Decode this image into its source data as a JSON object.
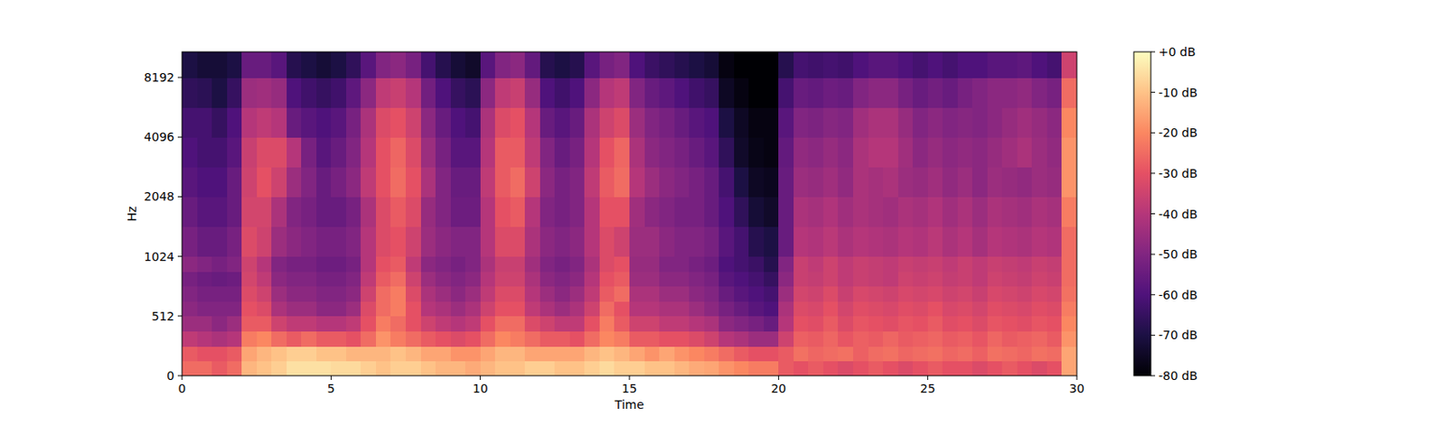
{
  "chart_data": {
    "type": "heatmap",
    "xlabel": "Time",
    "ylabel": "Hz",
    "log": "y",
    "xlim": [
      0,
      30
    ],
    "xticks": [
      0,
      5,
      10,
      15,
      20,
      25,
      30
    ],
    "ylim": [
      0,
      11025
    ],
    "yticks": [
      0,
      512,
      1024,
      2048,
      4096,
      8192
    ],
    "x_bins": [
      0,
      0.5,
      1,
      1.5,
      2,
      2.5,
      3,
      3.5,
      4,
      4.5,
      5,
      5.5,
      6,
      6.5,
      7,
      7.5,
      8,
      8.5,
      9,
      9.5,
      10,
      10.5,
      11,
      11.5,
      12,
      12.5,
      13,
      13.5,
      14,
      14.5,
      15,
      15.5,
      16,
      16.5,
      17,
      17.5,
      18,
      18.5,
      19,
      19.5,
      20,
      20.5,
      21,
      21.5,
      22,
      22.5,
      23,
      23.5,
      24,
      24.5,
      25,
      25.5,
      26,
      26.5,
      27,
      27.5,
      28,
      28.5,
      29,
      29.5,
      30
    ],
    "y_bins": [
      0,
      128,
      256,
      384,
      512,
      640,
      768,
      896,
      1024,
      1448,
      2048,
      2896,
      4096,
      5793,
      8192,
      11025
    ],
    "cells": [
      [
        -25,
        -25,
        -28,
        -25,
        -12,
        -10,
        -8,
        -5,
        -5,
        -5,
        -6,
        -6,
        -8,
        -10,
        -8,
        -8,
        -10,
        -12,
        -12,
        -14,
        -12,
        -10,
        -10,
        -8,
        -8,
        -10,
        -10,
        -8,
        -6,
        -8,
        -8,
        -10,
        -10,
        -12,
        -14,
        -15,
        -18,
        -20,
        -22,
        -22,
        -28,
        -30,
        -28,
        -30,
        -32,
        -30,
        -28,
        -30,
        -32,
        -30,
        -28,
        -30,
        -30,
        -32,
        -30,
        -28,
        -30,
        -32,
        -30,
        -15
      ],
      [
        -28,
        -30,
        -30,
        -28,
        -15,
        -12,
        -10,
        -8,
        -8,
        -10,
        -10,
        -12,
        -12,
        -12,
        -10,
        -12,
        -15,
        -15,
        -18,
        -18,
        -15,
        -12,
        -12,
        -15,
        -15,
        -15,
        -15,
        -12,
        -10,
        -12,
        -15,
        -18,
        -15,
        -18,
        -20,
        -22,
        -25,
        -28,
        -30,
        -30,
        -28,
        -24,
        -26,
        -25,
        -24,
        -27,
        -25,
        -24,
        -26,
        -25,
        -24,
        -26,
        -25,
        -27,
        -24,
        -25,
        -26,
        -24,
        -25,
        -15
      ],
      [
        -38,
        -40,
        -42,
        -40,
        -22,
        -20,
        -25,
        -28,
        -25,
        -28,
        -28,
        -30,
        -25,
        -18,
        -22,
        -25,
        -28,
        -30,
        -32,
        -30,
        -25,
        -20,
        -22,
        -25,
        -28,
        -28,
        -30,
        -25,
        -20,
        -22,
        -28,
        -28,
        -30,
        -30,
        -32,
        -35,
        -40,
        -42,
        -45,
        -45,
        -35,
        -27,
        -28,
        -26,
        -29,
        -27,
        -28,
        -26,
        -28,
        -27,
        -26,
        -28,
        -27,
        -29,
        -26,
        -28,
        -27,
        -26,
        -28,
        -18
      ],
      [
        -45,
        -45,
        -48,
        -45,
        -28,
        -28,
        -35,
        -38,
        -38,
        -40,
        -40,
        -38,
        -30,
        -22,
        -25,
        -30,
        -35,
        -38,
        -40,
        -38,
        -30,
        -25,
        -25,
        -32,
        -35,
        -38,
        -38,
        -30,
        -22,
        -28,
        -35,
        -35,
        -38,
        -38,
        -40,
        -42,
        -48,
        -50,
        -52,
        -55,
        -40,
        -30,
        -31,
        -28,
        -32,
        -29,
        -30,
        -31,
        -29,
        -30,
        -28,
        -31,
        -30,
        -32,
        -29,
        -30,
        -31,
        -29,
        -30,
        -20
      ],
      [
        -48,
        -50,
        -50,
        -50,
        -30,
        -32,
        -42,
        -45,
        -45,
        -48,
        -48,
        -45,
        -32,
        -25,
        -22,
        -30,
        -40,
        -42,
        -45,
        -42,
        -35,
        -30,
        -30,
        -38,
        -42,
        -45,
        -42,
        -35,
        -25,
        -30,
        -40,
        -40,
        -42,
        -42,
        -45,
        -48,
        -52,
        -55,
        -58,
        -60,
        -42,
        -32,
        -33,
        -30,
        -34,
        -31,
        -32,
        -33,
        -31,
        -32,
        -30,
        -33,
        -32,
        -34,
        -31,
        -32,
        -33,
        -31,
        -32,
        -22
      ],
      [
        -50,
        -52,
        -52,
        -52,
        -32,
        -35,
        -45,
        -48,
        -48,
        -50,
        -50,
        -48,
        -35,
        -25,
        -22,
        -32,
        -42,
        -45,
        -48,
        -45,
        -38,
        -32,
        -32,
        -40,
        -45,
        -48,
        -45,
        -38,
        -28,
        -25,
        -42,
        -42,
        -45,
        -45,
        -48,
        -50,
        -55,
        -58,
        -60,
        -62,
        -45,
        -34,
        -35,
        -32,
        -36,
        -33,
        -34,
        -35,
        -33,
        -34,
        -33,
        -35,
        -34,
        -36,
        -33,
        -34,
        -35,
        -33,
        -34,
        -24
      ],
      [
        -52,
        -54,
        -55,
        -54,
        -34,
        -38,
        -48,
        -50,
        -50,
        -52,
        -52,
        -50,
        -38,
        -28,
        -25,
        -35,
        -45,
        -48,
        -50,
        -48,
        -40,
        -35,
        -35,
        -42,
        -48,
        -50,
        -48,
        -40,
        -30,
        -28,
        -45,
        -45,
        -48,
        -48,
        -50,
        -52,
        -58,
        -60,
        -62,
        -65,
        -48,
        -36,
        -37,
        -35,
        -38,
        -36,
        -37,
        -38,
        -35,
        -36,
        -35,
        -37,
        -36,
        -38,
        -35,
        -36,
        -37,
        -35,
        -36,
        -25
      ],
      [
        -48,
        -50,
        -52,
        -50,
        -35,
        -40,
        -50,
        -52,
        -52,
        -54,
        -54,
        -52,
        -40,
        -30,
        -28,
        -38,
        -48,
        -50,
        -52,
        -50,
        -42,
        -36,
        -36,
        -44,
        -50,
        -52,
        -50,
        -42,
        -32,
        -30,
        -46,
        -46,
        -50,
        -50,
        -52,
        -54,
        -60,
        -62,
        -64,
        -68,
        -50,
        -36,
        -38,
        -35,
        -38,
        -36,
        -37,
        -38,
        -36,
        -37,
        -36,
        -38,
        -36,
        -38,
        -36,
        -37,
        -38,
        -36,
        -37,
        -25
      ],
      [
        -52,
        -55,
        -55,
        -52,
        -32,
        -35,
        -45,
        -48,
        -50,
        -52,
        -52,
        -50,
        -40,
        -32,
        -30,
        -35,
        -45,
        -48,
        -50,
        -50,
        -40,
        -32,
        -32,
        -42,
        -48,
        -50,
        -48,
        -40,
        -32,
        -35,
        -45,
        -45,
        -48,
        -50,
        -50,
        -52,
        -58,
        -62,
        -68,
        -70,
        -55,
        -40,
        -41,
        -39,
        -42,
        -40,
        -41,
        -42,
        -40,
        -41,
        -39,
        -42,
        -40,
        -43,
        -40,
        -41,
        -42,
        -40,
        -41,
        -25
      ],
      [
        -55,
        -58,
        -58,
        -55,
        -34,
        -34,
        -42,
        -50,
        -52,
        -55,
        -55,
        -52,
        -42,
        -32,
        -28,
        -32,
        -46,
        -50,
        -54,
        -54,
        -40,
        -30,
        -28,
        -40,
        -50,
        -52,
        -50,
        -40,
        -30,
        -30,
        -44,
        -48,
        -50,
        -52,
        -52,
        -55,
        -60,
        -66,
        -72,
        -74,
        -55,
        -42,
        -43,
        -41,
        -44,
        -42,
        -43,
        -44,
        -42,
        -43,
        -41,
        -44,
        -42,
        -45,
        -42,
        -43,
        -44,
        -42,
        -43,
        -22
      ],
      [
        -58,
        -60,
        -60,
        -55,
        -35,
        -30,
        -35,
        -45,
        -50,
        -55,
        -52,
        -48,
        -38,
        -30,
        -25,
        -30,
        -42,
        -50,
        -55,
        -55,
        -38,
        -28,
        -25,
        -35,
        -48,
        -52,
        -50,
        -38,
        -28,
        -25,
        -40,
        -45,
        -48,
        -50,
        -52,
        -55,
        -62,
        -70,
        -75,
        -76,
        -55,
        -45,
        -46,
        -44,
        -47,
        -42,
        -43,
        -42,
        -45,
        -46,
        -44,
        -47,
        -45,
        -48,
        -45,
        -46,
        -47,
        -45,
        -46,
        -18
      ],
      [
        -60,
        -62,
        -62,
        -58,
        -36,
        -32,
        -32,
        -40,
        -52,
        -58,
        -55,
        -50,
        -40,
        -30,
        -26,
        -32,
        -45,
        -52,
        -58,
        -58,
        -40,
        -28,
        -28,
        -38,
        -50,
        -55,
        -52,
        -40,
        -30,
        -26,
        -42,
        -48,
        -50,
        -52,
        -55,
        -58,
        -66,
        -74,
        -77,
        -78,
        -56,
        -47,
        -48,
        -46,
        -48,
        -42,
        -40,
        -40,
        -44,
        -48,
        -46,
        -48,
        -47,
        -48,
        -46,
        -44,
        -42,
        -45,
        -47,
        -18
      ],
      [
        -62,
        -62,
        -65,
        -60,
        -40,
        -38,
        -40,
        -55,
        -58,
        -60,
        -58,
        -52,
        -42,
        -32,
        -30,
        -35,
        -48,
        -55,
        -60,
        -62,
        -42,
        -32,
        -30,
        -40,
        -55,
        -58,
        -55,
        -42,
        -35,
        -32,
        -45,
        -50,
        -52,
        -55,
        -58,
        -60,
        -70,
        -75,
        -78,
        -78,
        -58,
        -50,
        -51,
        -49,
        -50,
        -44,
        -42,
        -42,
        -46,
        -50,
        -48,
        -50,
        -49,
        -50,
        -48,
        -46,
        -44,
        -46,
        -48,
        -20
      ],
      [
        -66,
        -67,
        -70,
        -65,
        -45,
        -44,
        -46,
        -60,
        -63,
        -65,
        -63,
        -57,
        -48,
        -38,
        -36,
        -40,
        -53,
        -60,
        -65,
        -67,
        -48,
        -38,
        -36,
        -46,
        -60,
        -63,
        -60,
        -48,
        -40,
        -38,
        -50,
        -55,
        -57,
        -60,
        -63,
        -65,
        -75,
        -78,
        -80,
        -80,
        -62,
        -55,
        -56,
        -54,
        -55,
        -50,
        -48,
        -48,
        -52,
        -55,
        -53,
        -55,
        -52,
        -50,
        -48,
        -48,
        -47,
        -50,
        -52,
        -25
      ],
      [
        -70,
        -72,
        -72,
        -70,
        -55,
        -55,
        -58,
        -68,
        -70,
        -72,
        -70,
        -66,
        -58,
        -50,
        -48,
        -52,
        -62,
        -68,
        -72,
        -74,
        -58,
        -50,
        -48,
        -56,
        -68,
        -70,
        -68,
        -58,
        -52,
        -50,
        -60,
        -64,
        -66,
        -68,
        -70,
        -72,
        -78,
        -80,
        -80,
        -80,
        -68,
        -62,
        -63,
        -62,
        -63,
        -60,
        -58,
        -58,
        -60,
        -62,
        -60,
        -62,
        -60,
        -60,
        -58,
        -58,
        -57,
        -60,
        -62,
        -35
      ]
    ],
    "colorbar_range": [
      -80,
      0
    ],
    "colorbar_ticks": [
      {
        "value": 0,
        "label": "+0 dB"
      },
      {
        "value": -10,
        "label": "-10 dB"
      },
      {
        "value": -20,
        "label": "-20 dB"
      },
      {
        "value": -30,
        "label": "-30 dB"
      },
      {
        "value": -40,
        "label": "-40 dB"
      },
      {
        "value": -50,
        "label": "-50 dB"
      },
      {
        "value": -60,
        "label": "-60 dB"
      },
      {
        "value": -70,
        "label": "-70 dB"
      },
      {
        "value": -80,
        "label": "-80 dB"
      }
    ]
  }
}
